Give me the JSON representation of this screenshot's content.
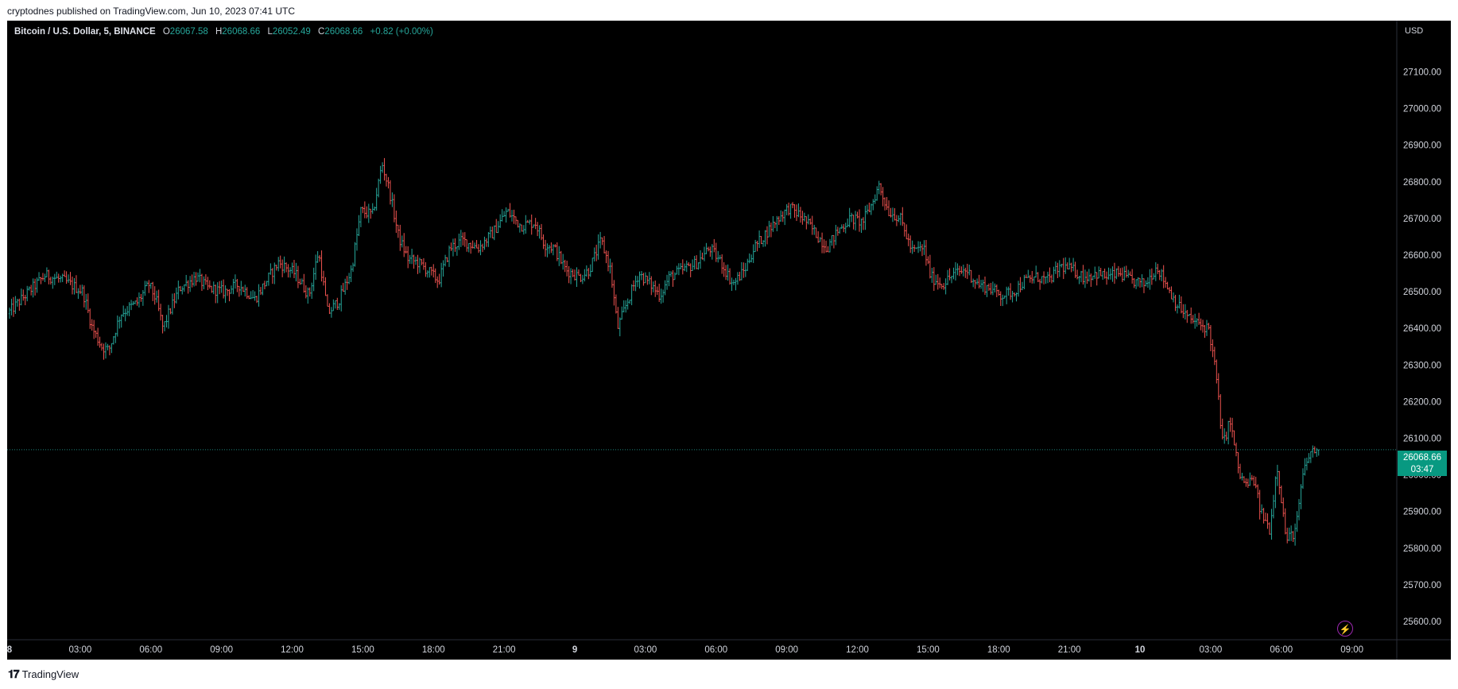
{
  "header": {
    "published_text": "cryptodnes published on TradingView.com, Jun 10, 2023 07:41 UTC"
  },
  "legend": {
    "symbol": "Bitcoin / U.S. Dollar, 5, BINANCE",
    "open_label": "O",
    "open": "26067.58",
    "high_label": "H",
    "high": "26068.66",
    "low_label": "L",
    "low": "26052.49",
    "close_label": "C",
    "close": "26068.66",
    "change": "+0.82 (+0.00%)"
  },
  "currency": "USD",
  "last_price": {
    "price": "26068.66",
    "countdown": "03:47"
  },
  "footer": {
    "brand": "TradingView"
  },
  "colors": {
    "up": "#26a69a",
    "down": "#ef5350",
    "background": "#000000",
    "axis_text": "#d1d4dc",
    "price_tag": "#089981"
  },
  "chart_data": {
    "type": "ohlc-bar",
    "interval": "5",
    "y_axis": {
      "ticks": [
        27100,
        27000,
        26900,
        26800,
        26700,
        26600,
        26500,
        26400,
        26300,
        26200,
        26100,
        26000,
        25900,
        25800,
        25700,
        25600
      ],
      "tick_labels": [
        "27100.00",
        "27000.00",
        "26900.00",
        "26800.00",
        "26700.00",
        "26600.00",
        "26500.00",
        "26400.00",
        "26300.00",
        "26200.00",
        "26100.00",
        "26000.00",
        "25900.00",
        "25800.00",
        "25700.00",
        "25600.00"
      ],
      "ylim": [
        25550,
        27240
      ]
    },
    "x_axis": {
      "tick_labels": [
        "8",
        "03:00",
        "06:00",
        "09:00",
        "12:00",
        "15:00",
        "18:00",
        "21:00",
        "9",
        "03:00",
        "06:00",
        "09:00",
        "12:00",
        "15:00",
        "18:00",
        "21:00",
        "10",
        "03:00",
        "06:00",
        "09:00"
      ],
      "tick_hours": [
        0,
        3,
        6,
        9,
        12,
        15,
        18,
        21,
        24,
        27,
        30,
        33,
        36,
        39,
        42,
        45,
        48,
        51,
        54,
        57
      ],
      "xlim_hours": [
        0,
        58.8
      ]
    },
    "last_price_line": 26068.66,
    "path": [
      [
        0.0,
        26440
      ],
      [
        0.9,
        26500
      ],
      [
        1.6,
        26545
      ],
      [
        2.4,
        26530
      ],
      [
        3.2,
        26500
      ],
      [
        3.6,
        26400
      ],
      [
        4.0,
        26350
      ],
      [
        4.3,
        26340
      ],
      [
        4.8,
        26440
      ],
      [
        5.5,
        26470
      ],
      [
        6.0,
        26520
      ],
      [
        6.3,
        26480
      ],
      [
        6.6,
        26400
      ],
      [
        6.9,
        26450
      ],
      [
        7.3,
        26510
      ],
      [
        8.0,
        26540
      ],
      [
        8.5,
        26510
      ],
      [
        9.2,
        26500
      ],
      [
        9.8,
        26520
      ],
      [
        10.5,
        26480
      ],
      [
        11.0,
        26530
      ],
      [
        11.5,
        26580
      ],
      [
        12.2,
        26550
      ],
      [
        12.8,
        26490
      ],
      [
        13.2,
        26610
      ],
      [
        13.6,
        26440
      ],
      [
        14.1,
        26480
      ],
      [
        14.6,
        26560
      ],
      [
        15.0,
        26720
      ],
      [
        15.5,
        26710
      ],
      [
        15.9,
        26850
      ],
      [
        16.2,
        26780
      ],
      [
        16.6,
        26650
      ],
      [
        17.0,
        26590
      ],
      [
        17.4,
        26580
      ],
      [
        17.8,
        26560
      ],
      [
        18.3,
        26530
      ],
      [
        18.8,
        26620
      ],
      [
        19.3,
        26640
      ],
      [
        20.0,
        26620
      ],
      [
        20.6,
        26660
      ],
      [
        21.2,
        26720
      ],
      [
        21.8,
        26680
      ],
      [
        22.4,
        26690
      ],
      [
        22.8,
        26630
      ],
      [
        23.2,
        26620
      ],
      [
        23.7,
        26560
      ],
      [
        24.3,
        26540
      ],
      [
        24.7,
        26560
      ],
      [
        25.2,
        26640
      ],
      [
        25.6,
        26560
      ],
      [
        25.9,
        26400
      ],
      [
        26.3,
        26470
      ],
      [
        26.8,
        26550
      ],
      [
        27.3,
        26520
      ],
      [
        27.7,
        26490
      ],
      [
        28.1,
        26540
      ],
      [
        28.7,
        26560
      ],
      [
        29.3,
        26580
      ],
      [
        29.8,
        26620
      ],
      [
        30.3,
        26580
      ],
      [
        30.8,
        26520
      ],
      [
        31.3,
        26560
      ],
      [
        31.7,
        26620
      ],
      [
        32.2,
        26660
      ],
      [
        32.7,
        26700
      ],
      [
        33.2,
        26730
      ],
      [
        33.8,
        26700
      ],
      [
        34.3,
        26660
      ],
      [
        34.8,
        26620
      ],
      [
        35.3,
        26670
      ],
      [
        35.8,
        26700
      ],
      [
        36.3,
        26690
      ],
      [
        36.7,
        26740
      ],
      [
        37.0,
        26790
      ],
      [
        37.4,
        26720
      ],
      [
        37.9,
        26700
      ],
      [
        38.4,
        26610
      ],
      [
        38.9,
        26620
      ],
      [
        39.2,
        26540
      ],
      [
        39.7,
        26520
      ],
      [
        40.2,
        26550
      ],
      [
        40.7,
        26560
      ],
      [
        41.2,
        26520
      ],
      [
        41.7,
        26510
      ],
      [
        42.2,
        26490
      ],
      [
        42.7,
        26500
      ],
      [
        43.2,
        26530
      ],
      [
        43.7,
        26540
      ],
      [
        44.2,
        26530
      ],
      [
        44.7,
        26570
      ],
      [
        45.2,
        26560
      ],
      [
        45.7,
        26540
      ],
      [
        46.2,
        26550
      ],
      [
        46.7,
        26540
      ],
      [
        47.2,
        26550
      ],
      [
        47.7,
        26530
      ],
      [
        48.3,
        26520
      ],
      [
        48.8,
        26570
      ],
      [
        49.2,
        26520
      ],
      [
        49.6,
        26470
      ],
      [
        50.1,
        26430
      ],
      [
        50.6,
        26410
      ],
      [
        51.0,
        26400
      ],
      [
        51.3,
        26280
      ],
      [
        51.6,
        26080
      ],
      [
        51.9,
        26150
      ],
      [
        52.3,
        26000
      ],
      [
        52.6,
        25970
      ],
      [
        52.9,
        25990
      ],
      [
        53.2,
        25900
      ],
      [
        53.6,
        25850
      ],
      [
        53.9,
        26030
      ],
      [
        54.3,
        25820
      ],
      [
        54.7,
        25850
      ],
      [
        55.0,
        26000
      ],
      [
        55.3,
        26060
      ],
      [
        55.6,
        26068.66
      ]
    ],
    "last_bar": {
      "open": 26067.58,
      "high": 26068.66,
      "low": 26052.49,
      "close": 26068.66
    },
    "extremes": {
      "high": 26910,
      "low": 25770
    }
  }
}
